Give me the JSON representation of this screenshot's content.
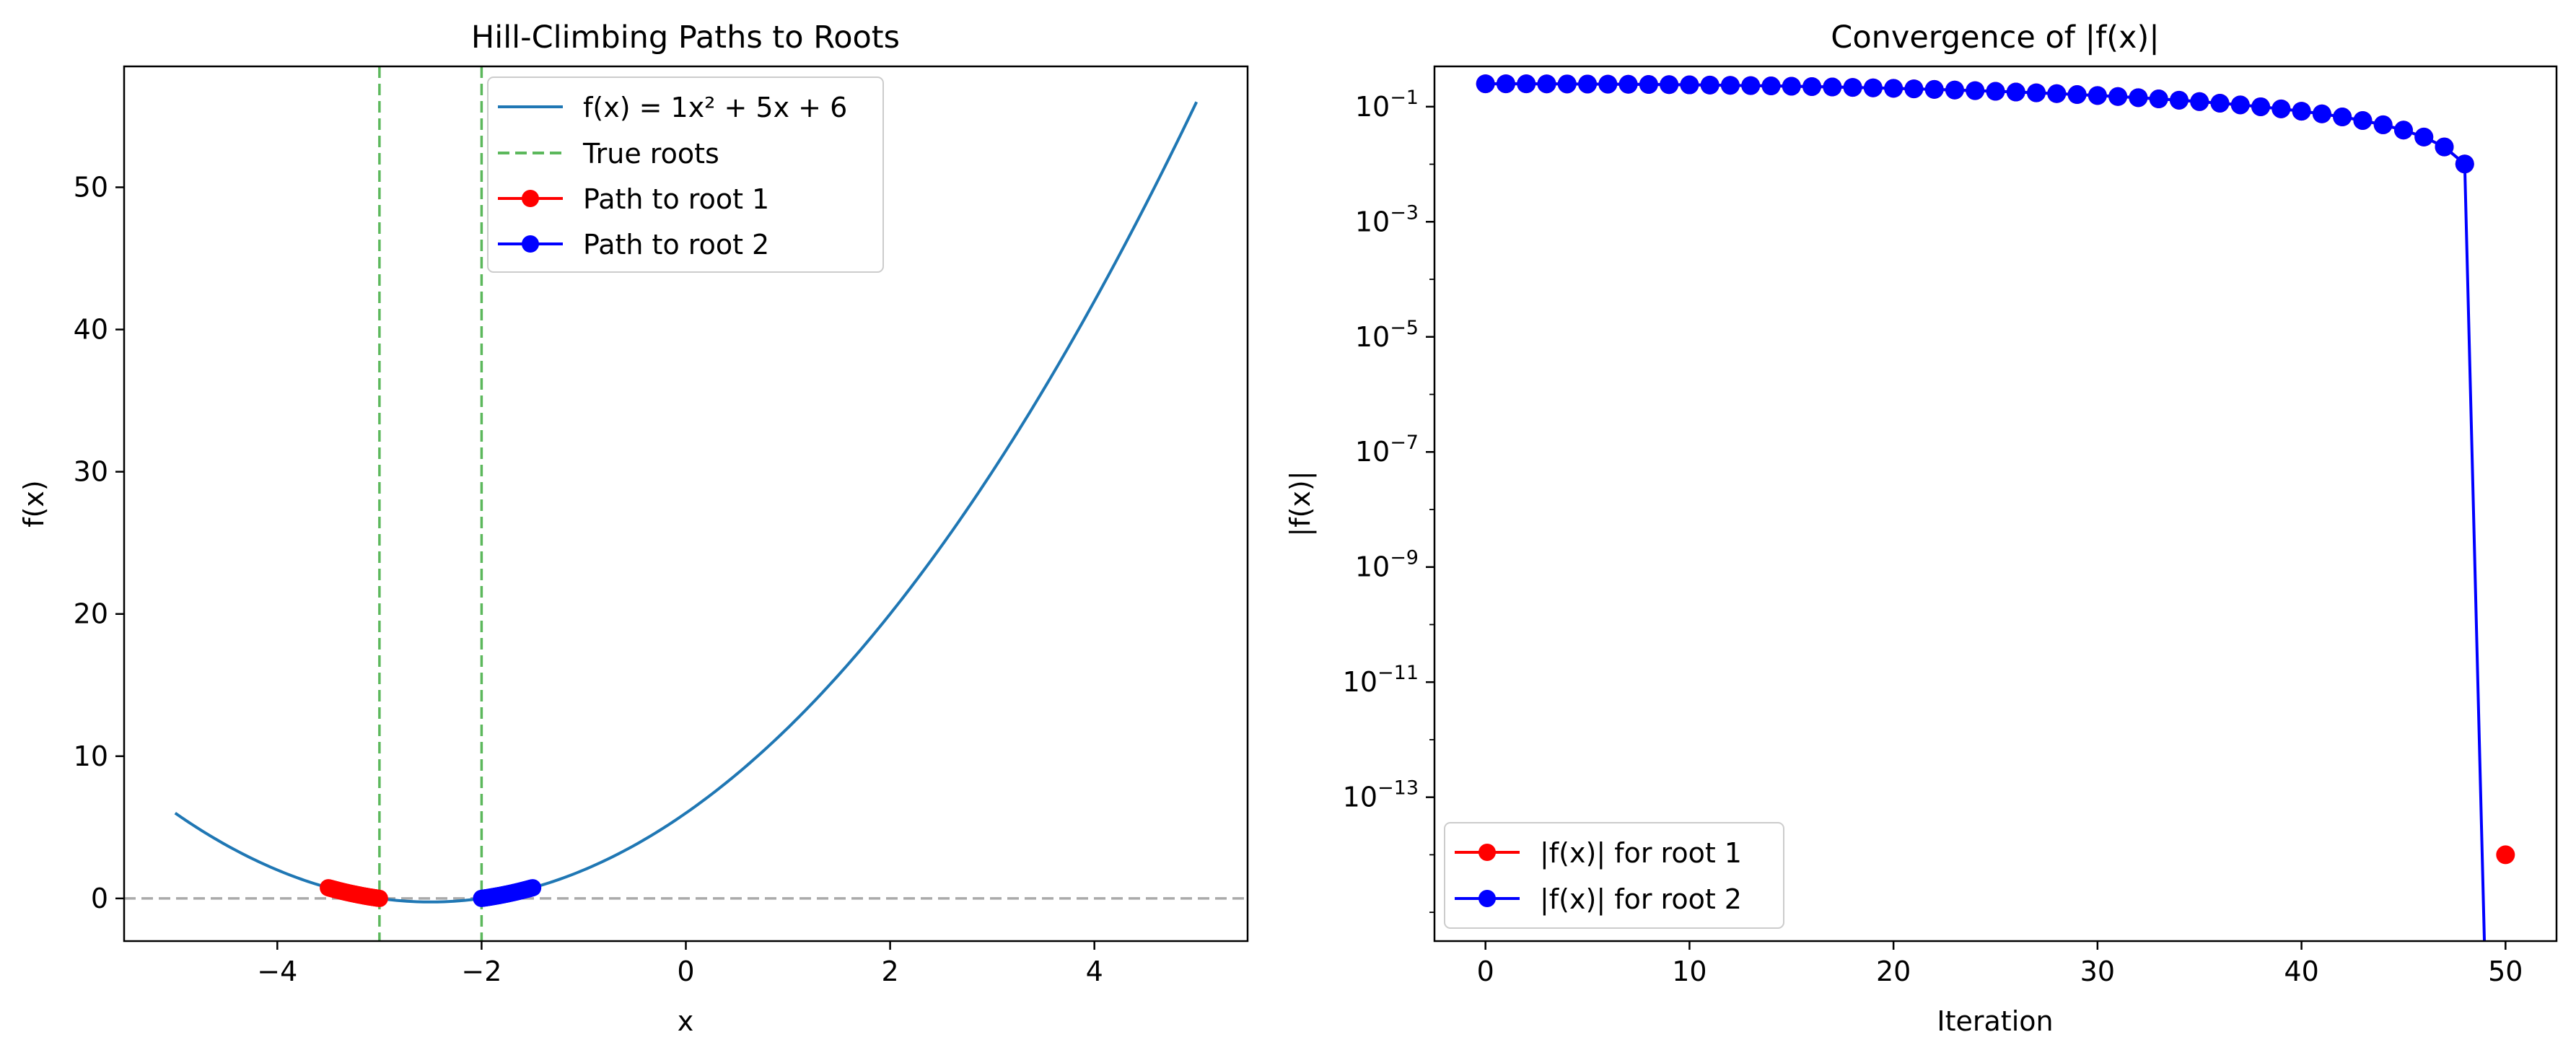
{
  "chart_data": [
    {
      "type": "line",
      "title": "Hill-Climbing Paths to Roots",
      "xlabel": "x",
      "ylabel": "f(x)",
      "xlim": [
        -5.5,
        5.5
      ],
      "ylim": [
        -3,
        58.5
      ],
      "xticks": [
        -4,
        -2,
        0,
        2,
        4
      ],
      "xtick_labels": [
        "−4",
        "−2",
        "0",
        "2",
        "4"
      ],
      "yticks": [
        0,
        10,
        20,
        30,
        40,
        50
      ],
      "ytick_labels": [
        "0",
        "10",
        "20",
        "30",
        "40",
        "50"
      ],
      "function": {
        "a": 1,
        "b": 5,
        "c": 6,
        "x_range": [
          -5,
          5
        ]
      },
      "roots": [
        -3,
        -2
      ],
      "zero_line": 0,
      "legend": {
        "position": "upper center",
        "entries": [
          "f(x) = 1x² + 5x + 6",
          "True roots",
          "Path to root 1",
          "Path to root 2"
        ]
      },
      "series": [
        {
          "name": "Path to root 1",
          "color": "#ff0000",
          "x_start": -3.5,
          "x_end": -3.0,
          "points": 51
        },
        {
          "name": "Path to root 2",
          "color": "#0000ff",
          "x_start": -1.5,
          "x_end": -2.0,
          "points": 50
        }
      ],
      "colors": {
        "function": "#1f77b4",
        "roots": "#5cb85c",
        "zero_line": "#aaaaaa"
      }
    },
    {
      "type": "line",
      "title": "Convergence of |f(x)|",
      "xlabel": "Iteration",
      "ylabel": "|f(x)|",
      "yscale": "log",
      "xlim": [
        -2.5,
        52.5
      ],
      "ylim_exp": [
        -15.5,
        -0.3
      ],
      "xticks": [
        0,
        10,
        20,
        30,
        40,
        50
      ],
      "xtick_labels": [
        "0",
        "10",
        "20",
        "30",
        "40",
        "50"
      ],
      "yticks_exp": [
        -1,
        -3,
        -5,
        -7,
        -9,
        -11,
        -13
      ],
      "ytick_base": "10",
      "ytick_exponents": [
        "−1",
        "−3",
        "−5",
        "−7",
        "−9",
        "−11",
        "−13"
      ],
      "legend": {
        "position": "lower left",
        "entries": [
          "|f(x)| for root 1",
          "|f(x)| for root 2"
        ]
      },
      "series": [
        {
          "name": "|f(x)| for root 1",
          "color": "#ff0000",
          "start_value": 0.75,
          "final_iteration": 50,
          "final_value": 1e-14
        },
        {
          "name": "|f(x)| for root 2",
          "color": "#0000ff",
          "start_value": 0.75,
          "final_iteration": 49,
          "final_value": 0.0
        }
      ]
    }
  ]
}
